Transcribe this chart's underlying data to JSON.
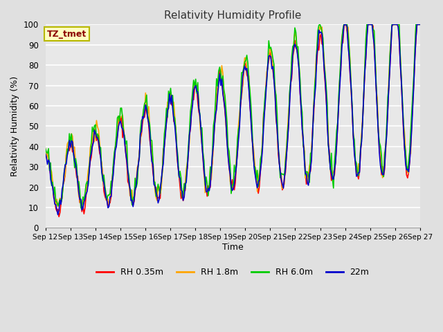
{
  "title": "Relativity Humidity Profile",
  "xlabel": "Time",
  "ylabel": "Relativity Humidity (%)",
  "annotation": "TZ_tmet",
  "annotation_color": "#8B0000",
  "annotation_bg": "#FFFFC0",
  "annotation_border": "#B8B800",
  "ylim": [
    0,
    100
  ],
  "yticks": [
    0,
    10,
    20,
    30,
    40,
    50,
    60,
    70,
    80,
    90,
    100
  ],
  "xtick_labels": [
    "Sep 12",
    "Sep 13",
    "Sep 14",
    "Sep 15",
    "Sep 16",
    "Sep 17",
    "Sep 18",
    "Sep 19",
    "Sep 20",
    "Sep 21",
    "Sep 22",
    "Sep 23",
    "Sep 24",
    "Sep 25",
    "Sep 26",
    "Sep 27"
  ],
  "bg_color": "#E0E0E0",
  "plot_bg": "#E8E8E8",
  "grid_color": "#FFFFFF",
  "line_colors": {
    "RH 0.35m": "#FF0000",
    "RH 1.8m": "#FFA500",
    "RH 6.0m": "#00CC00",
    "22m": "#0000CC"
  },
  "line_width": 1.2,
  "legend_labels": [
    "RH 0.35m",
    "RH 1.8m",
    "RH 6.0m",
    "22m"
  ]
}
